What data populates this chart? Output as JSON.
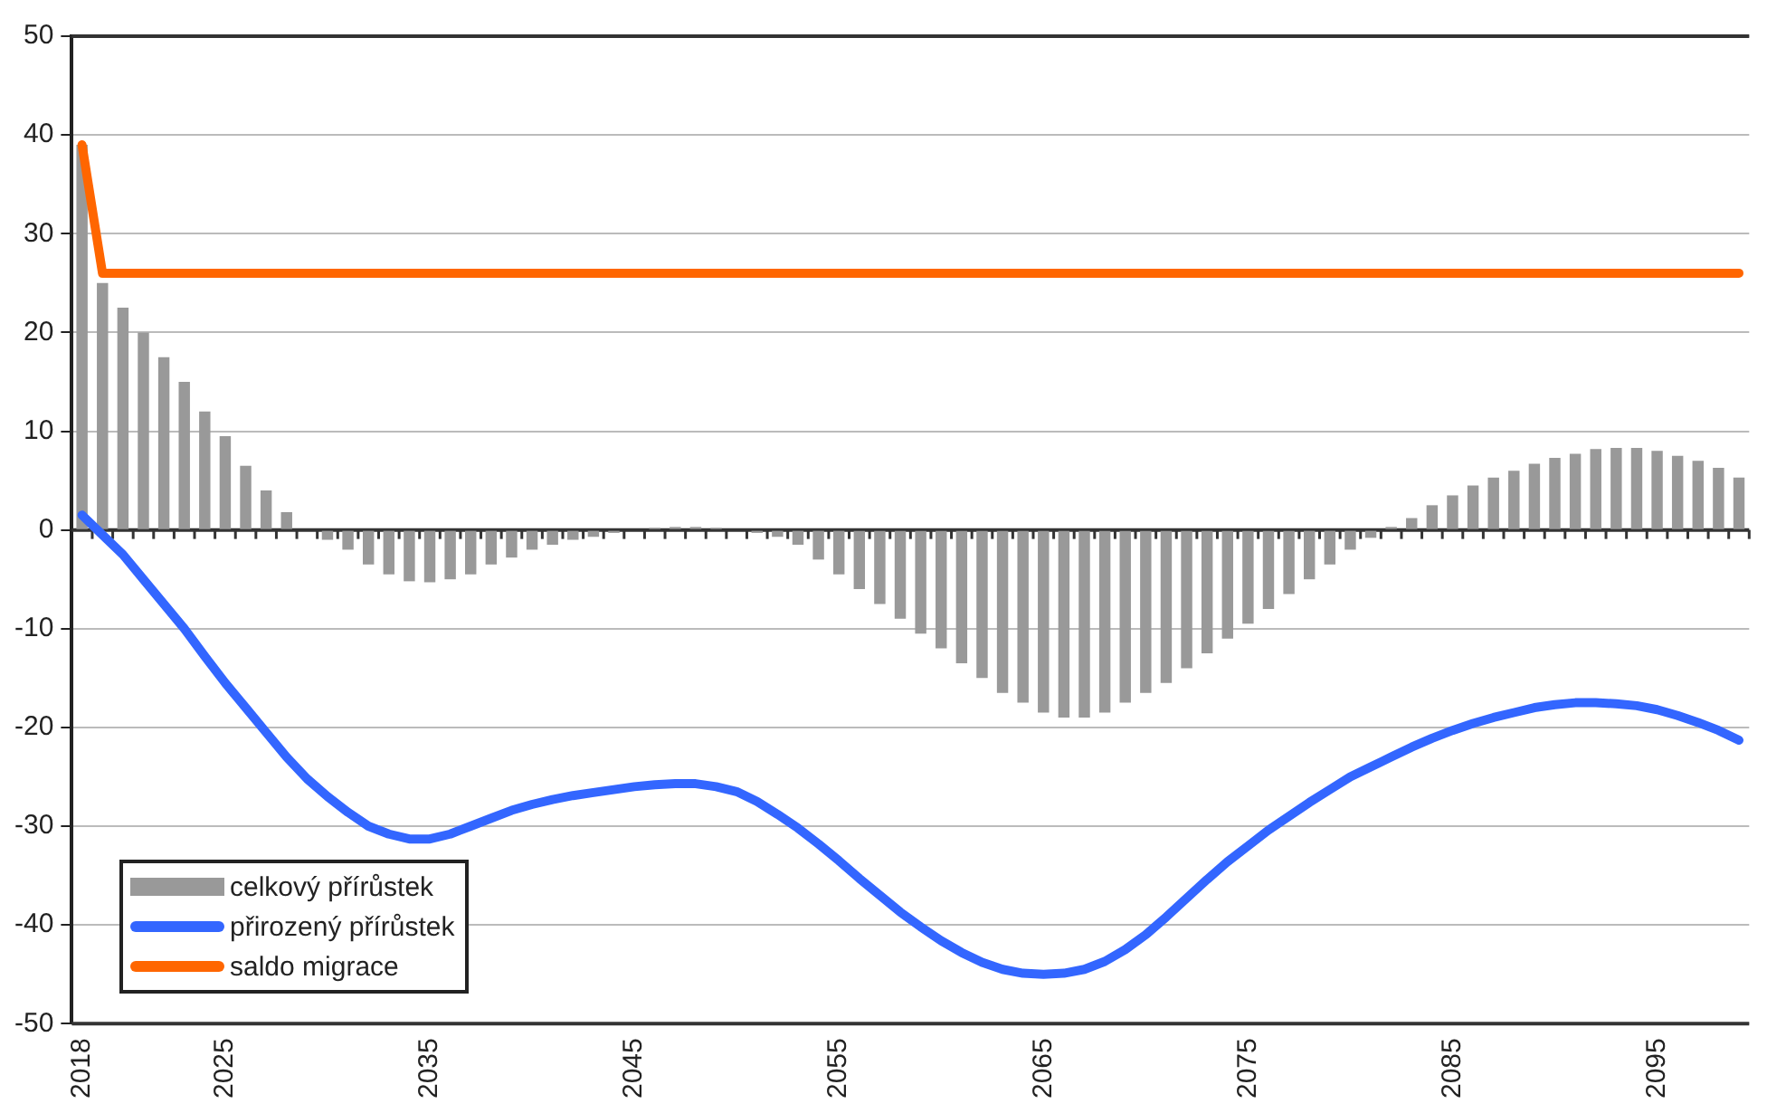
{
  "chart_data": {
    "type": "bar",
    "categories": [
      "2018",
      null,
      null,
      null,
      null,
      null,
      null,
      "2025",
      null,
      null,
      null,
      null,
      null,
      null,
      null,
      null,
      null,
      "2035",
      null,
      null,
      null,
      null,
      null,
      null,
      null,
      null,
      null,
      "2045",
      null,
      null,
      null,
      null,
      null,
      null,
      null,
      null,
      null,
      "2055",
      null,
      null,
      null,
      null,
      null,
      null,
      null,
      null,
      null,
      "2065",
      null,
      null,
      null,
      null,
      null,
      null,
      null,
      null,
      null,
      "2075",
      null,
      null,
      null,
      null,
      null,
      null,
      null,
      null,
      null,
      "2085",
      null,
      null,
      null,
      null,
      null,
      null,
      null,
      null,
      null,
      "2095",
      null,
      null,
      null,
      null
    ],
    "series": [
      {
        "name": "celkový přírůstek",
        "color": "#999999",
        "values": [
          39,
          25,
          22.5,
          20,
          17.5,
          15,
          12,
          9.5,
          6.5,
          4,
          1.8,
          0,
          -1,
          -2,
          -3.5,
          -4.5,
          -5.2,
          -5.3,
          -5,
          -4.5,
          -3.5,
          -2.8,
          -2,
          -1.5,
          -1,
          -0.7,
          -0.3,
          0,
          0.2,
          0.3,
          0.3,
          0.2,
          0,
          -0.3,
          -0.7,
          -1.5,
          -3,
          -4.5,
          -6,
          -7.5,
          -9,
          -10.5,
          -12,
          -13.5,
          -15,
          -16.5,
          -17.5,
          -18.5,
          -19,
          -19,
          -18.5,
          -17.5,
          -16.5,
          -15.5,
          -14,
          -12.5,
          -11,
          -9.5,
          -8,
          -6.5,
          -5,
          -3.5,
          -2,
          -0.8,
          0.3,
          1.2,
          2.5,
          3.5,
          4.5,
          5.3,
          6,
          6.7,
          7.3,
          7.7,
          8.2,
          8.3,
          8.3,
          8,
          7.5,
          7,
          6.3,
          5.3
        ]
      },
      {
        "name": "přirozený přírůstek",
        "type": "line",
        "color": "#3366ff",
        "values": [
          1.5,
          -0.5,
          -2.5,
          -5,
          -7.5,
          -10,
          -12.8,
          -15.5,
          -18,
          -20.5,
          -23,
          -25.2,
          -27,
          -28.6,
          -30,
          -30.8,
          -31.3,
          -31.3,
          -30.8,
          -30,
          -29.2,
          -28.4,
          -27.8,
          -27.3,
          -26.9,
          -26.6,
          -26.3,
          -26,
          -25.8,
          -25.7,
          -25.7,
          -26,
          -26.5,
          -27.5,
          -28.8,
          -30.2,
          -31.8,
          -33.5,
          -35.3,
          -37,
          -38.7,
          -40.2,
          -41.6,
          -42.8,
          -43.8,
          -44.5,
          -44.9,
          -45,
          -44.9,
          -44.5,
          -43.7,
          -42.5,
          -41,
          -39.2,
          -37.3,
          -35.4,
          -33.6,
          -32,
          -30.4,
          -29,
          -27.6,
          -26.3,
          -25,
          -24,
          -23,
          -22,
          -21.1,
          -20.3,
          -19.6,
          -19,
          -18.5,
          -18,
          -17.7,
          -17.5,
          -17.5,
          -17.6,
          -17.8,
          -18.2,
          -18.8,
          -19.5,
          -20.3,
          -21.3
        ]
      },
      {
        "name": "saldo migrace",
        "type": "line",
        "color": "#ff6600",
        "values": [
          39,
          26,
          26,
          26,
          26,
          26,
          26,
          26,
          26,
          26,
          26,
          26,
          26,
          26,
          26,
          26,
          26,
          26,
          26,
          26,
          26,
          26,
          26,
          26,
          26,
          26,
          26,
          26,
          26,
          26,
          26,
          26,
          26,
          26,
          26,
          26,
          26,
          26,
          26,
          26,
          26,
          26,
          26,
          26,
          26,
          26,
          26,
          26,
          26,
          26,
          26,
          26,
          26,
          26,
          26,
          26,
          26,
          26,
          26,
          26,
          26,
          26,
          26,
          26,
          26,
          26,
          26,
          26,
          26,
          26,
          26,
          26,
          26,
          26,
          26,
          26,
          26,
          26,
          26,
          26,
          26,
          26
        ]
      }
    ],
    "ylim": [
      -50,
      50
    ],
    "yticks": [
      -50,
      -40,
      -30,
      -20,
      -10,
      0,
      10,
      20,
      30,
      40,
      50
    ],
    "grid": "y",
    "legend": "bottom left",
    "marker": "none",
    "line_style": "solid"
  }
}
